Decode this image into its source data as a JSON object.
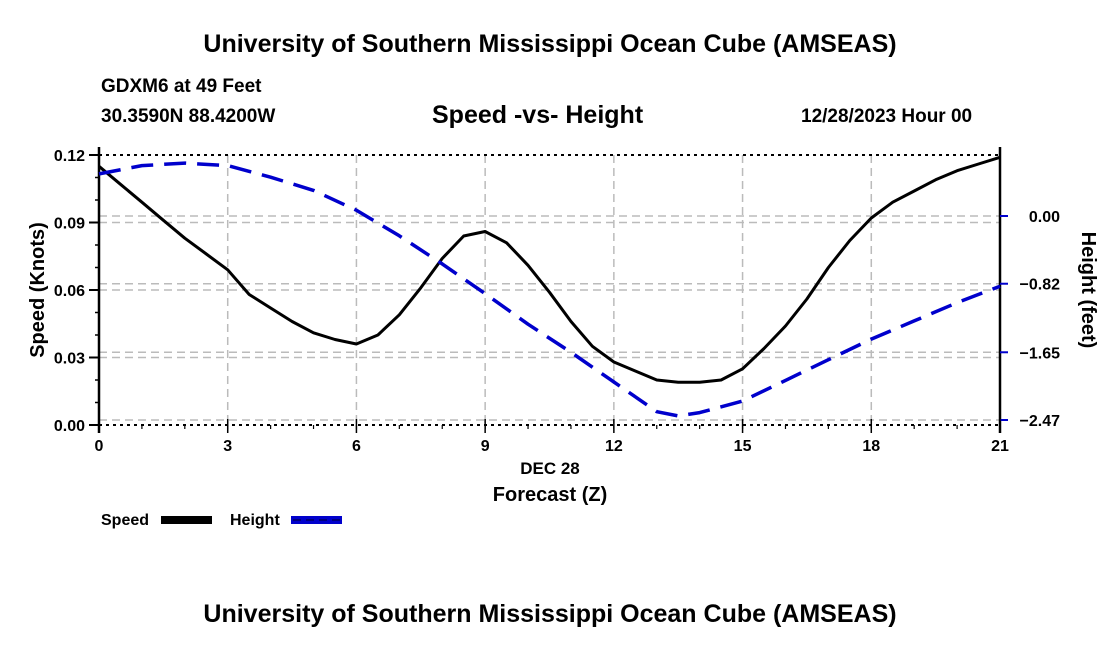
{
  "header": {
    "main_title": "University of Southern Mississippi Ocean Cube (AMSEAS)",
    "station": "GDXM6 at 49 Feet",
    "coords": "30.3590N  88.4200W",
    "chart_title": "Speed -vs- Height",
    "datetime": "12/28/2023 Hour 00"
  },
  "footer": {
    "bottom_title": "University of Southern Mississippi Ocean Cube (AMSEAS)"
  },
  "colors": {
    "speed": "#000000",
    "height": "#0000cc",
    "grid": "#bbbbbb"
  },
  "chart_data": {
    "type": "line",
    "title": "Speed -vs- Height",
    "xlabel": "Forecast (Z)",
    "xsublabel": "DEC 28",
    "ylabel": "Speed (Knots)",
    "y2label": "Height (feet)",
    "xlim": [
      0,
      21
    ],
    "ylim": [
      0,
      0.12
    ],
    "y2lim": [
      -2.47,
      0.82
    ],
    "xticks": [
      0,
      3,
      6,
      9,
      12,
      15,
      18,
      21
    ],
    "xtick_labels": [
      "0",
      "3",
      "6",
      "9",
      "12",
      "15",
      "18",
      "21"
    ],
    "yticks": [
      0,
      0.03,
      0.06,
      0.09,
      0.12
    ],
    "ytick_labels": [
      "0.00",
      "0.03",
      "0.06",
      "0.09",
      "0.12"
    ],
    "y2ticks": [
      0,
      -0.82,
      -1.65,
      -2.47
    ],
    "y2tick_labels": [
      "0.00",
      "−0.82",
      "−1.65",
      "−2.47"
    ],
    "grid": true,
    "legend": "bottom-left",
    "series": [
      {
        "name": "Speed",
        "axis": "left",
        "style": "solid",
        "x": [
          0,
          0.5,
          1,
          1.5,
          2,
          2.5,
          3,
          3.5,
          4,
          4.5,
          5,
          5.5,
          6,
          6.5,
          7,
          7.5,
          8,
          8.5,
          9,
          9.5,
          10,
          10.5,
          11,
          11.5,
          12,
          12.5,
          13,
          13.5,
          14,
          14.5,
          15,
          15.5,
          16,
          16.5,
          17,
          17.5,
          18,
          18.5,
          19,
          19.5,
          20,
          20.5,
          21
        ],
        "values": [
          0.115,
          0.107,
          0.099,
          0.091,
          0.083,
          0.076,
          0.069,
          0.058,
          0.052,
          0.046,
          0.041,
          0.038,
          0.036,
          0.04,
          0.049,
          0.061,
          0.074,
          0.084,
          0.086,
          0.081,
          0.071,
          0.059,
          0.046,
          0.035,
          0.028,
          0.024,
          0.02,
          0.019,
          0.019,
          0.02,
          0.025,
          0.034,
          0.044,
          0.056,
          0.07,
          0.082,
          0.092,
          0.099,
          0.104,
          0.109,
          0.113,
          0.116,
          0.119
        ]
      },
      {
        "name": "Height",
        "axis": "right",
        "style": "dashed",
        "x": [
          0,
          1,
          2,
          3,
          4,
          5,
          6,
          7,
          8,
          9,
          10,
          11,
          12,
          13,
          13.5,
          14,
          15,
          16,
          17,
          18,
          19,
          20,
          21
        ],
        "values": [
          0.51,
          0.61,
          0.64,
          0.61,
          0.47,
          0.31,
          0.07,
          -0.24,
          -0.58,
          -0.94,
          -1.31,
          -1.65,
          -2.01,
          -2.37,
          -2.42,
          -2.38,
          -2.24,
          -1.99,
          -1.74,
          -1.49,
          -1.27,
          -1.05,
          -0.85
        ]
      }
    ]
  }
}
